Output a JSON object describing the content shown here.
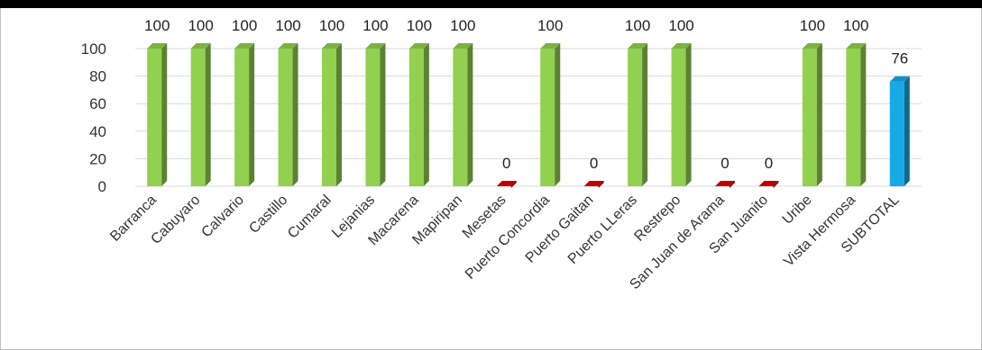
{
  "chart_data": {
    "type": "bar",
    "title": "",
    "xlabel": "",
    "ylabel": "",
    "ylim": [
      0,
      100
    ],
    "yticks": [
      0,
      20,
      40,
      60,
      80,
      100
    ],
    "grid": true,
    "legend": "none",
    "categories": [
      "Barranca",
      "Cabuyaro",
      "Calvario",
      "Castillo",
      "Cumaral",
      "Lejanias",
      "Macarena",
      "Mapiripan",
      "Mesetas",
      "Puerto Concordia",
      "Puerto Gaitan",
      "Puerto LLeras",
      "Restrepo",
      "San Juan de Arama",
      "San Juanito",
      "Uribe",
      "Vista Hermosa",
      "SUBTOTAL"
    ],
    "values": [
      100,
      100,
      100,
      100,
      100,
      100,
      100,
      100,
      0,
      100,
      0,
      100,
      100,
      0,
      0,
      100,
      100,
      76
    ],
    "data_labels": [
      "100",
      "100",
      "100",
      "100",
      "100",
      "100",
      "100",
      "100",
      "0",
      "100",
      "0",
      "100",
      "100",
      "0",
      "0",
      "100",
      "100",
      "76"
    ],
    "colors": {
      "full": "#92d050",
      "zero": "#c00000",
      "subtotal": "#17a9e6",
      "grid": "#d9d9d9"
    }
  }
}
